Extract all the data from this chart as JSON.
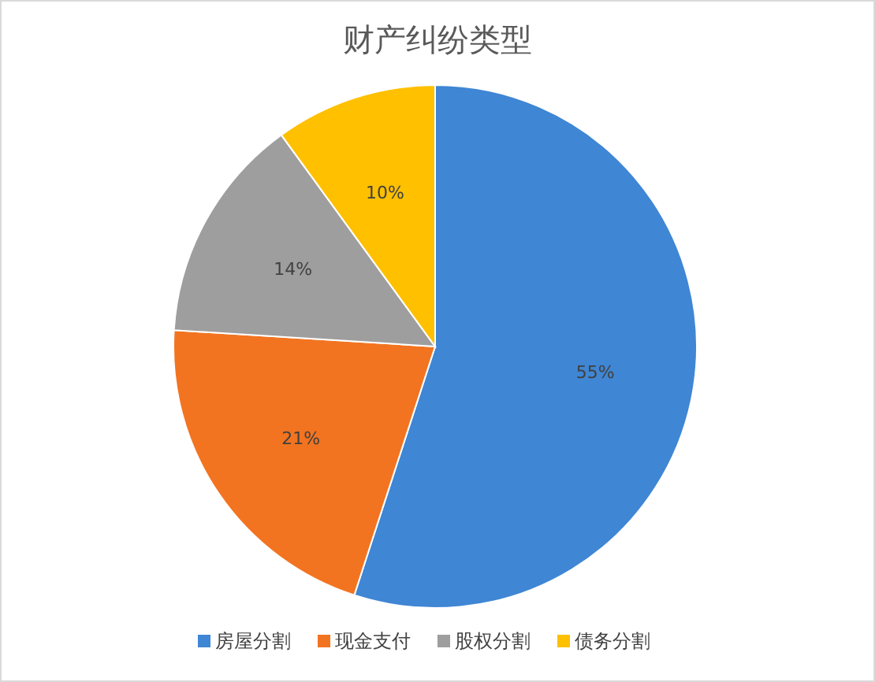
{
  "chart_data": {
    "type": "pie",
    "title": "财产纠纷类型",
    "categories": [
      "房屋分割",
      "现金支付",
      "股权分割",
      "债务分割"
    ],
    "values": [
      55,
      21,
      14,
      10
    ],
    "colors": [
      "#3f86d4",
      "#f27420",
      "#9e9e9e",
      "#ffc000"
    ],
    "value_labels": [
      "55%",
      "21%",
      "14%",
      "10%"
    ],
    "legend": "bottom"
  }
}
